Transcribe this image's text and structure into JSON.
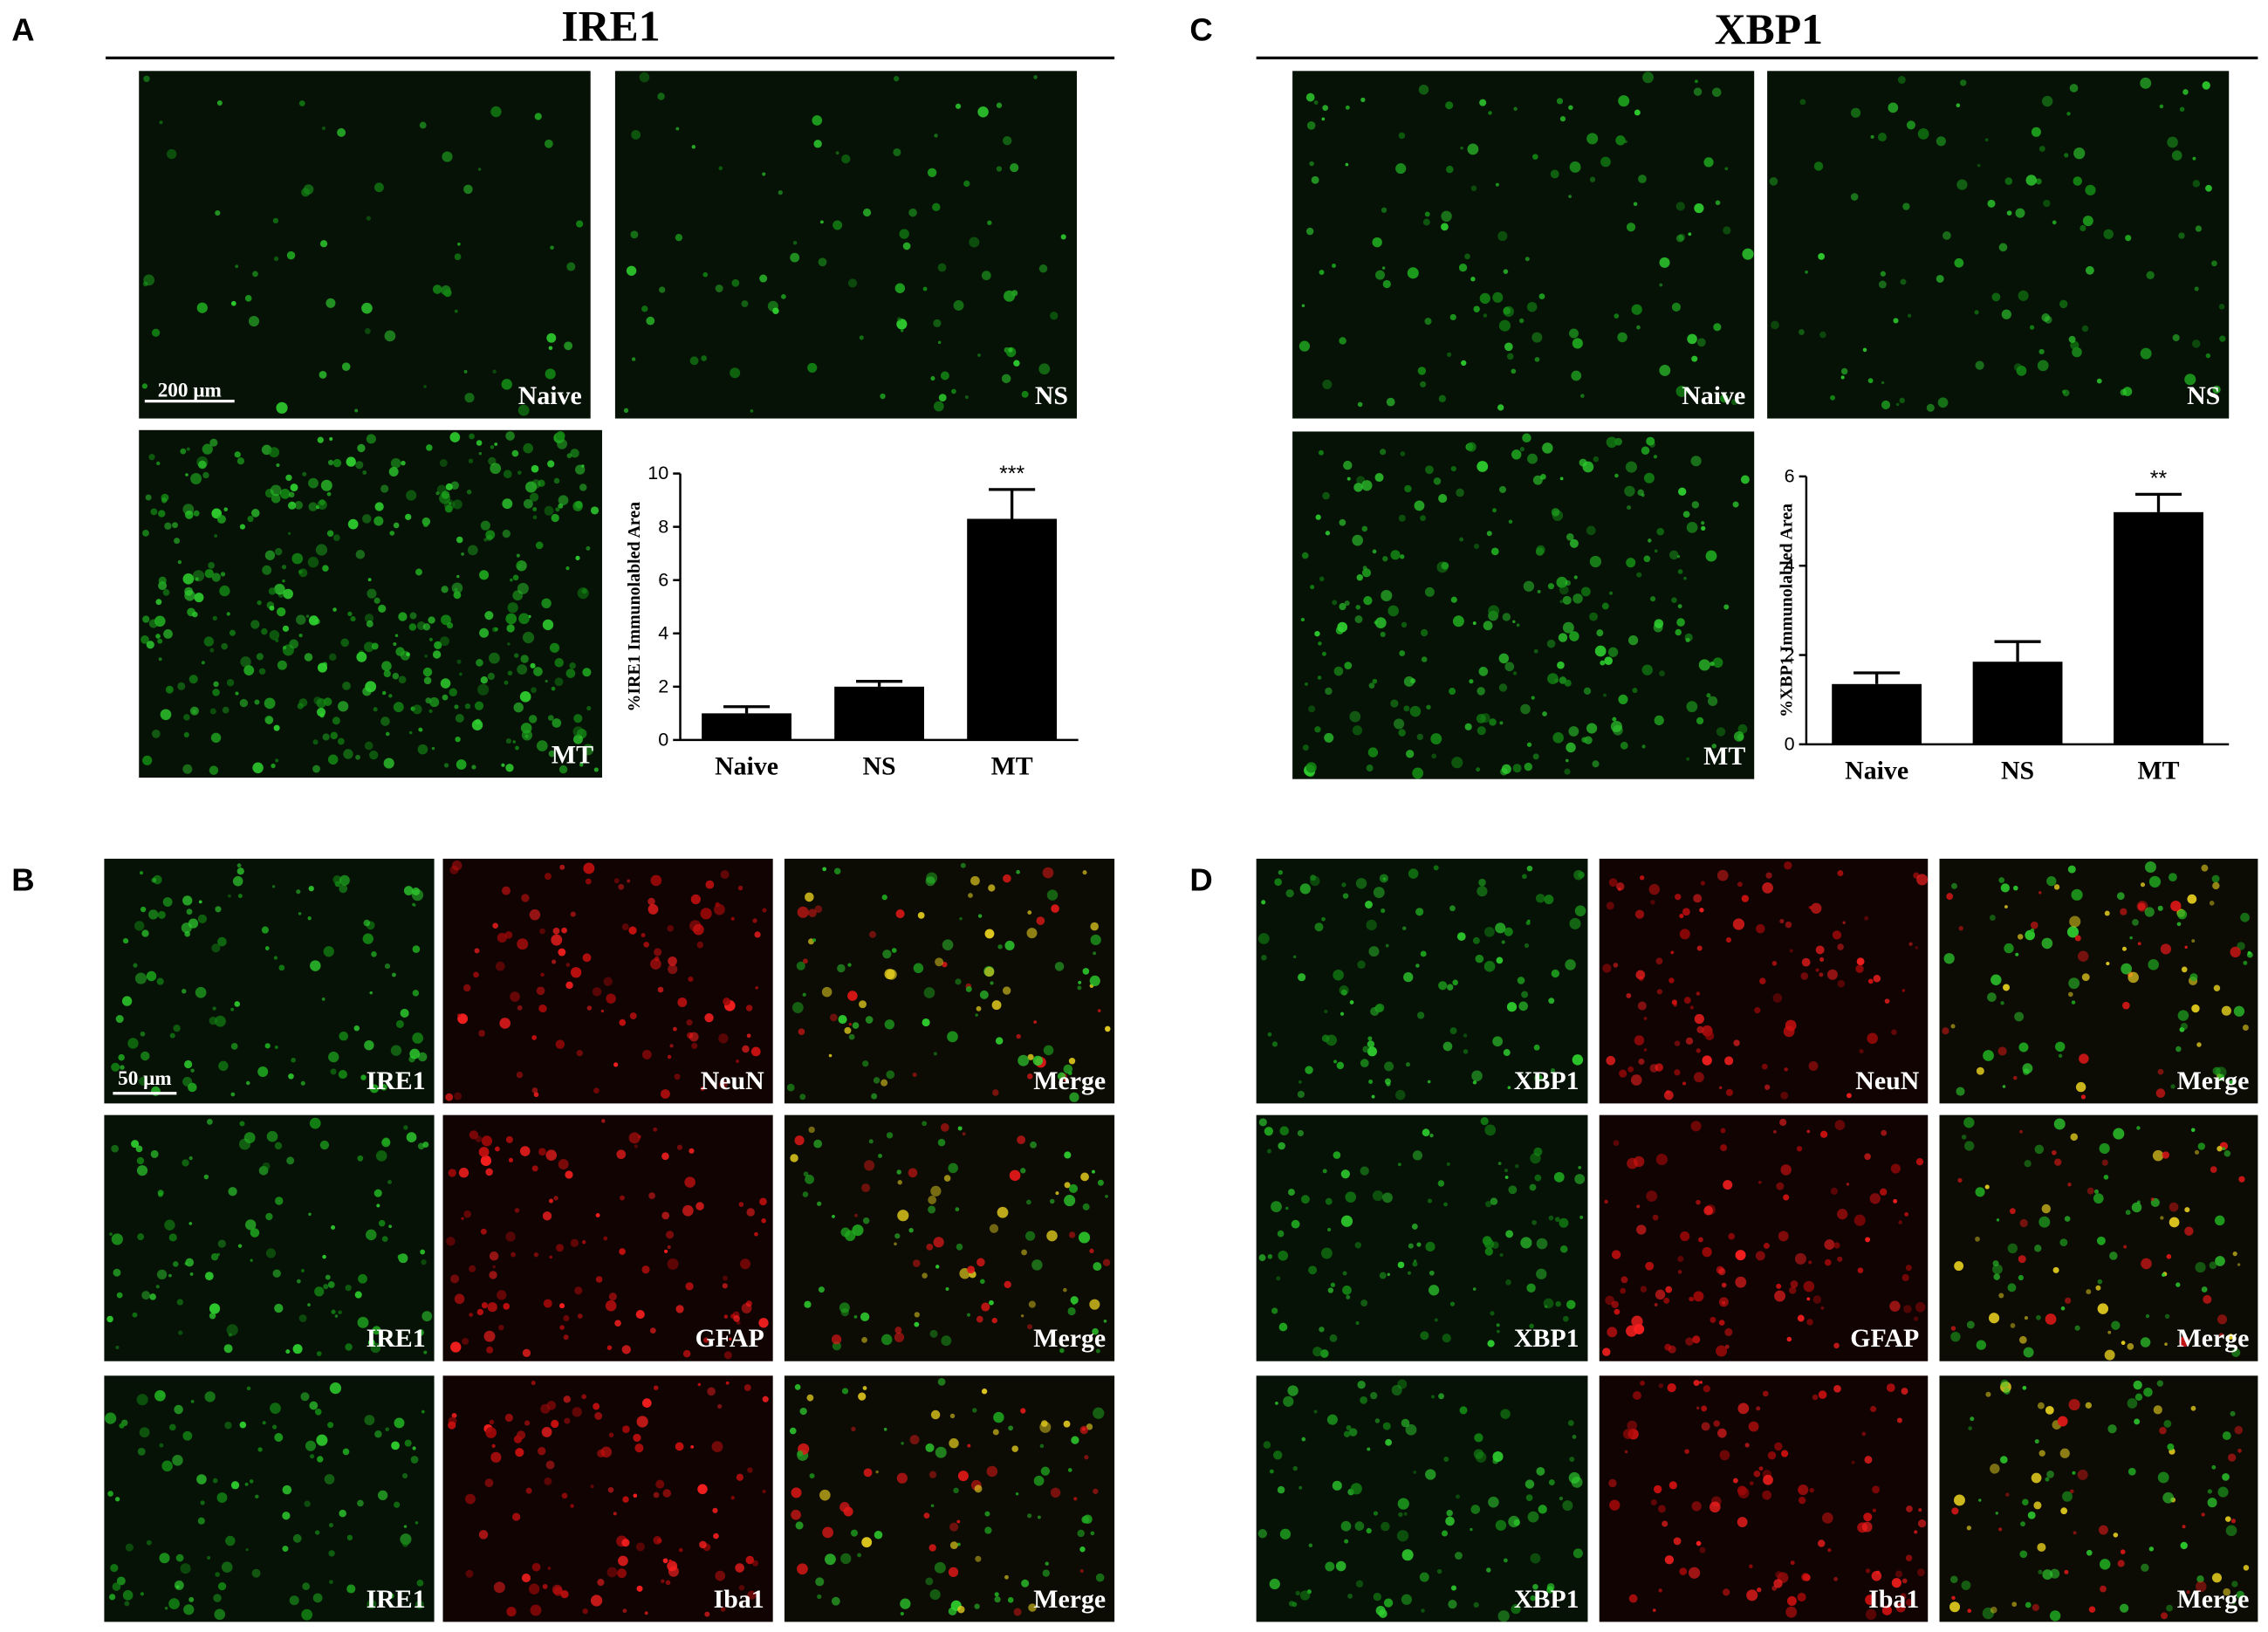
{
  "panel_a": {
    "letter": "A",
    "title": "IRE1",
    "scale_bar": "200 μm",
    "images": [
      "Naive",
      "NS",
      "MT"
    ]
  },
  "panel_b": {
    "letter": "B",
    "scale_bar": "50 μm",
    "rows": [
      [
        "IRE1",
        "NeuN",
        "Merge"
      ],
      [
        "IRE1",
        "GFAP",
        "Merge"
      ],
      [
        "IRE1",
        "Iba1",
        "Merge"
      ]
    ]
  },
  "panel_c": {
    "letter": "C",
    "title": "XBP1",
    "images": [
      "Naive",
      "NS",
      "MT"
    ]
  },
  "panel_d": {
    "letter": "D",
    "rows": [
      [
        "XBP1",
        "NeuN",
        "Merge"
      ],
      [
        "XBP1",
        "GFAP",
        "Merge"
      ],
      [
        "XBP1",
        "Iba1",
        "Merge"
      ]
    ]
  },
  "chart_data": [
    {
      "type": "bar",
      "y_label": "%IRE1 Immunolabled Area",
      "categories": [
        "Naive",
        "NS",
        "MT"
      ],
      "values": [
        1.0,
        2.0,
        8.3
      ],
      "errors": [
        0.25,
        0.2,
        1.1
      ],
      "significance": [
        null,
        null,
        "***"
      ],
      "color": "#000000",
      "ylim": [
        0,
        10
      ],
      "yticks": [
        0,
        2,
        4,
        6,
        8,
        10
      ]
    },
    {
      "type": "bar",
      "y_label": "%XBP1 Immunolabled Area",
      "categories": [
        "Naive",
        "NS",
        "MT"
      ],
      "values": [
        1.35,
        1.85,
        5.2
      ],
      "errors": [
        0.25,
        0.45,
        0.4
      ],
      "significance": [
        null,
        null,
        "**"
      ],
      "color": "#000000",
      "ylim": [
        0,
        6
      ],
      "yticks": [
        0,
        2,
        4,
        6
      ]
    }
  ]
}
